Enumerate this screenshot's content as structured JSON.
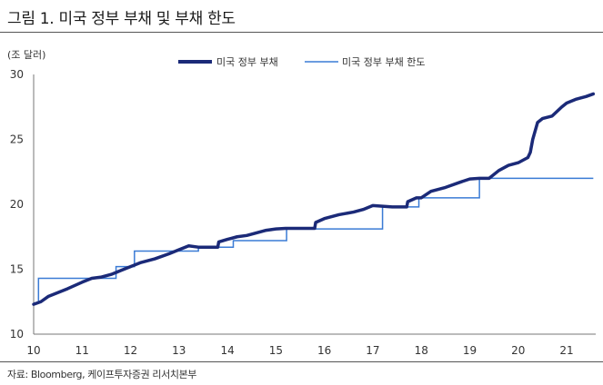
{
  "header": {
    "title": "그림 1. 미국 정부 부채 및 부채 한도"
  },
  "footer": {
    "source": "자료: Bloomberg, 케이프투자증권 리서치본부"
  },
  "chart_data": {
    "type": "line",
    "unit_label": "(조 달러)",
    "ylim": [
      10,
      30
    ],
    "yticks": [
      "30",
      "25",
      "20",
      "15",
      "10"
    ],
    "xlim": [
      10,
      21.6
    ],
    "xticks": [
      "10",
      "11",
      "12",
      "13",
      "14",
      "15",
      "16",
      "17",
      "18",
      "19",
      "20",
      "21"
    ],
    "legend_position": "top",
    "series": [
      {
        "name": "미국 정부 부채",
        "color": "#1b2a78",
        "style": "thick",
        "x": [
          10.0,
          10.15,
          10.3,
          10.5,
          10.7,
          11.0,
          11.2,
          11.4,
          11.6,
          11.8,
          12.0,
          12.2,
          12.5,
          12.8,
          13.0,
          13.2,
          13.4,
          13.6,
          13.8,
          13.82,
          14.0,
          14.2,
          14.4,
          14.6,
          14.8,
          15.0,
          15.2,
          15.5,
          15.8,
          15.82,
          16.0,
          16.3,
          16.6,
          16.8,
          17.0,
          17.2,
          17.4,
          17.6,
          17.7,
          17.72,
          17.9,
          18.0,
          18.2,
          18.5,
          18.8,
          19.0,
          19.2,
          19.4,
          19.6,
          19.8,
          20.0,
          20.2,
          20.25,
          20.3,
          20.4,
          20.5,
          20.7,
          20.9,
          21.0,
          21.2,
          21.4,
          21.55
        ],
        "y": [
          12.3,
          12.5,
          12.9,
          13.2,
          13.5,
          14.0,
          14.3,
          14.4,
          14.6,
          14.9,
          15.2,
          15.5,
          15.8,
          16.2,
          16.5,
          16.8,
          16.7,
          16.7,
          16.7,
          17.1,
          17.3,
          17.5,
          17.6,
          17.8,
          18.0,
          18.1,
          18.15,
          18.15,
          18.15,
          18.6,
          18.9,
          19.2,
          19.4,
          19.6,
          19.9,
          19.85,
          19.8,
          19.8,
          19.8,
          20.2,
          20.5,
          20.5,
          21.0,
          21.3,
          21.7,
          21.95,
          22.0,
          22.0,
          22.6,
          23.0,
          23.2,
          23.6,
          24.0,
          25.0,
          26.3,
          26.6,
          26.8,
          27.5,
          27.8,
          28.1,
          28.3,
          28.5
        ]
      },
      {
        "name": "미국 정부 부채 한도",
        "color": "#3a7bd5",
        "style": "step",
        "x": [
          10.0,
          10.1,
          11.1,
          11.7,
          12.08,
          13.4,
          14.12,
          15.22,
          17.2,
          17.95,
          19.2,
          21.55
        ],
        "y": [
          12.4,
          14.3,
          14.3,
          15.2,
          16.4,
          16.7,
          17.2,
          18.1,
          19.8,
          20.5,
          22.0,
          22.0
        ]
      }
    ]
  }
}
